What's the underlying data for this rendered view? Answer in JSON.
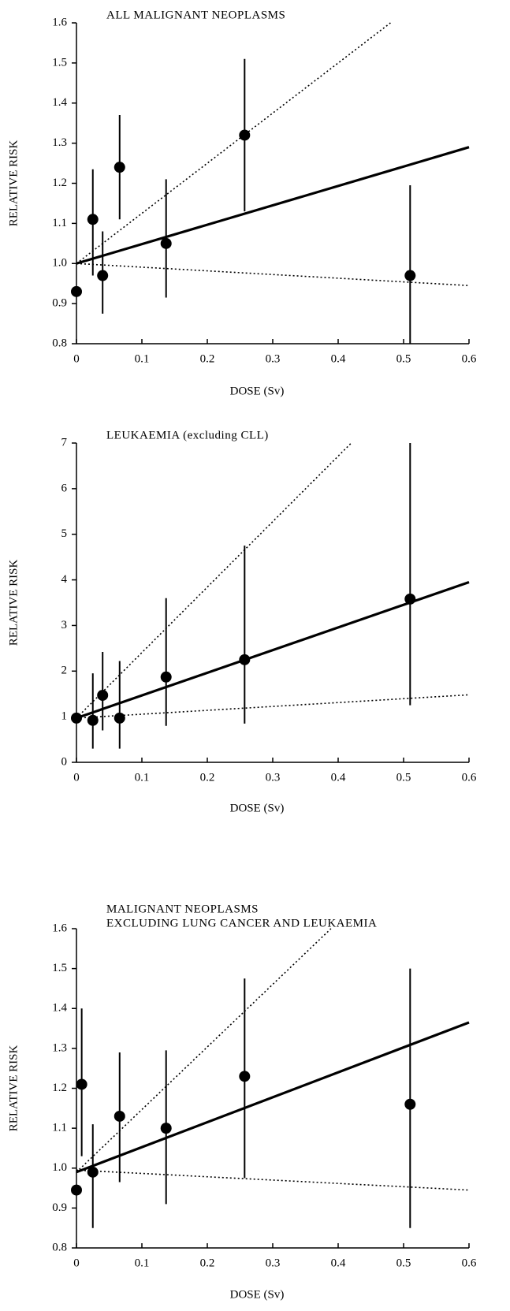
{
  "chart_data": [
    {
      "type": "scatter",
      "title": [
        "ALL MALIGNANT NEOPLASMS"
      ],
      "xlabel": "DOSE (Sv)",
      "ylabel": "RELATIVE RISK",
      "xlim": [
        0,
        0.6
      ],
      "xticks": [
        0,
        0.1,
        0.2,
        0.3,
        0.4,
        0.5,
        0.6
      ],
      "ylim": [
        0.8,
        1.6
      ],
      "yticks": [
        0.8,
        0.9,
        {
          "value": 1,
          "label": "1.0"
        },
        1.1,
        1.2,
        1.3,
        1.4,
        1.5,
        1.6
      ],
      "color": "#000000",
      "x": [
        0,
        0.025,
        0.04,
        0.066,
        0.137,
        0.257,
        0.51
      ],
      "values": [
        0.93,
        1.11,
        0.97,
        1.24,
        1.05,
        1.32,
        0.97
      ],
      "lower": [
        null,
        0.97,
        0.875,
        1.11,
        0.915,
        1.13,
        0.8
      ],
      "upper": [
        null,
        1.235,
        1.08,
        1.37,
        1.21,
        1.51,
        1.195
      ],
      "lines": [
        {
          "dash": false,
          "x": [
            0,
            0.6
          ],
          "y": [
            1,
            1.29
          ]
        },
        {
          "dash": true,
          "x": [
            0,
            0.48
          ],
          "y": [
            1,
            1.6
          ]
        },
        {
          "dash": true,
          "x": [
            0,
            0.6
          ],
          "y": [
            1,
            0.945
          ]
        }
      ]
    },
    {
      "type": "scatter",
      "title": [
        "LEUKAEMIA (excluding CLL)"
      ],
      "xlabel": "DOSE (Sv)",
      "ylabel": "RELATIVE RISK",
      "xlim": [
        0,
        0.6
      ],
      "xticks": [
        0,
        0.1,
        0.2,
        0.3,
        0.4,
        0.5,
        0.6
      ],
      "ylim": [
        0,
        7
      ],
      "yticks": [
        0,
        1,
        2,
        3,
        4,
        5,
        6,
        7
      ],
      "color": "#000000",
      "x": [
        0,
        0.025,
        0.04,
        0.066,
        0.137,
        0.257,
        0.51
      ],
      "values": [
        0.97,
        0.92,
        1.47,
        0.97,
        1.87,
        2.25,
        3.58
      ],
      "lower": [
        null,
        0.3,
        0.7,
        0.3,
        0.8,
        0.85,
        1.25
      ],
      "upper": [
        null,
        1.95,
        2.42,
        2.22,
        3.6,
        4.75,
        7
      ],
      "lines": [
        {
          "dash": false,
          "x": [
            0,
            0.6
          ],
          "y": [
            0.97,
            3.95
          ]
        },
        {
          "dash": true,
          "x": [
            0,
            0.42
          ],
          "y": [
            0.97,
            7
          ]
        },
        {
          "dash": true,
          "x": [
            0,
            0.6
          ],
          "y": [
            0.97,
            1.48
          ]
        }
      ]
    },
    {
      "type": "scatter",
      "title": [
        "MALIGNANT NEOPLASMS",
        "EXCLUDING LUNG CANCER AND LEUKAEMIA"
      ],
      "xlabel": "DOSE (Sv)",
      "ylabel": "RELATIVE RISK",
      "xlim": [
        0,
        0.6
      ],
      "xticks": [
        0,
        0.1,
        0.2,
        0.3,
        0.4,
        0.5,
        0.6
      ],
      "ylim": [
        0.8,
        1.6
      ],
      "yticks": [
        0.8,
        0.9,
        {
          "value": 1,
          "label": "1.0"
        },
        1.1,
        1.2,
        1.3,
        1.4,
        1.5,
        1.6
      ],
      "color": "#000000",
      "x": [
        0,
        0.008,
        0.025,
        0.066,
        0.137,
        0.257,
        0.51
      ],
      "values": [
        0.945,
        1.21,
        0.99,
        1.13,
        1.1,
        1.23,
        1.16
      ],
      "lower": [
        null,
        1.03,
        0.85,
        0.965,
        0.91,
        0.975,
        0.85
      ],
      "upper": [
        null,
        1.4,
        1.11,
        1.29,
        1.295,
        1.475,
        1.5
      ],
      "lines": [
        {
          "dash": false,
          "x": [
            0,
            0.6
          ],
          "y": [
            0.99,
            1.365
          ]
        },
        {
          "dash": true,
          "x": [
            0,
            0.389
          ],
          "y": [
            0.99,
            1.6
          ]
        },
        {
          "dash": true,
          "x": [
            0,
            0.6
          ],
          "y": [
            0.995,
            0.945
          ]
        }
      ]
    }
  ]
}
